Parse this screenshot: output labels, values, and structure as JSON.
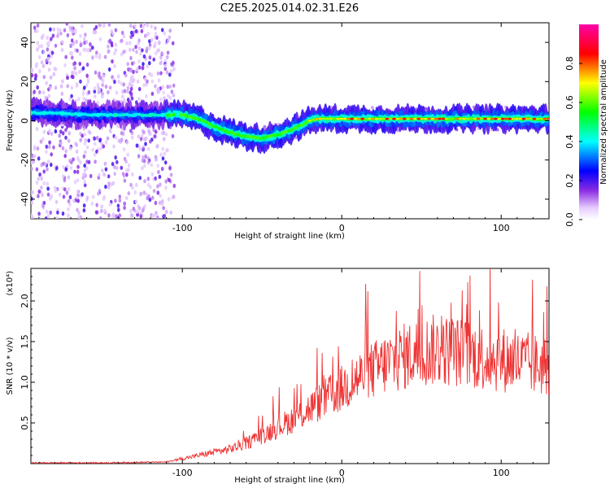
{
  "title": "C2E5.2025.014.02.31.E26",
  "chart_data": [
    {
      "type": "heatmap",
      "xlabel": "Height of straight line (km)",
      "ylabel": "Frequency (Hz)",
      "xlim": [
        -195,
        130
      ],
      "ylim": [
        -50,
        50
      ],
      "x_ticks": [
        -100,
        0,
        100
      ],
      "y_ticks": [
        -40,
        -20,
        0,
        20,
        40
      ],
      "grid": false,
      "colorbar": {
        "label": "Normalized spectral amplitude",
        "range": [
          0,
          1
        ],
        "ticks": [
          0.0,
          0.2,
          0.4,
          0.6,
          0.8
        ],
        "colormap": [
          "#ffffff",
          "#e0c0ff",
          "#8000ff",
          "#0000ff",
          "#00ffff",
          "#00ff00",
          "#ffff00",
          "#ff0000",
          "#ff00ff"
        ]
      },
      "ridge": {
        "x": [
          -195,
          -180,
          -160,
          -140,
          -120,
          -110,
          -100,
          -90,
          -80,
          -70,
          -60,
          -50,
          -40,
          -30,
          -20,
          -15,
          -10,
          0,
          20,
          40,
          60,
          80,
          100,
          120,
          130
        ],
        "y": [
          4,
          4,
          3,
          3,
          3,
          3,
          3,
          1,
          -3,
          -6,
          -8,
          -9,
          -7,
          -4,
          0,
          1,
          1,
          1,
          1,
          1,
          1,
          1,
          1,
          1,
          1
        ]
      }
    },
    {
      "type": "line",
      "xlabel": "Height of straight line (km)",
      "ylabel": "SNR (10 * v/v)",
      "y_scale_label": "(x10⁴)",
      "xlim": [
        -195,
        130
      ],
      "ylim": [
        0,
        2.4
      ],
      "x_ticks": [
        -100,
        0,
        100
      ],
      "y_ticks": [
        0.5,
        1.0,
        1.5,
        2.0
      ],
      "grid": false,
      "series": [
        {
          "color": "#ee3333",
          "x": [
            -195,
            -150,
            -110,
            -100,
            -90,
            -80,
            -70,
            -60,
            -50,
            -40,
            -30,
            -20,
            -10,
            0,
            10,
            20,
            30,
            40,
            50,
            60,
            70,
            80,
            90,
            100,
            110,
            120,
            130
          ],
          "y": [
            0.01,
            0.01,
            0.02,
            0.06,
            0.1,
            0.14,
            0.18,
            0.25,
            0.35,
            0.45,
            0.55,
            0.68,
            0.8,
            0.92,
            1.05,
            1.15,
            1.25,
            1.32,
            1.38,
            1.4,
            1.38,
            1.35,
            1.3,
            1.28,
            1.25,
            1.22,
            1.2
          ]
        }
      ]
    }
  ]
}
